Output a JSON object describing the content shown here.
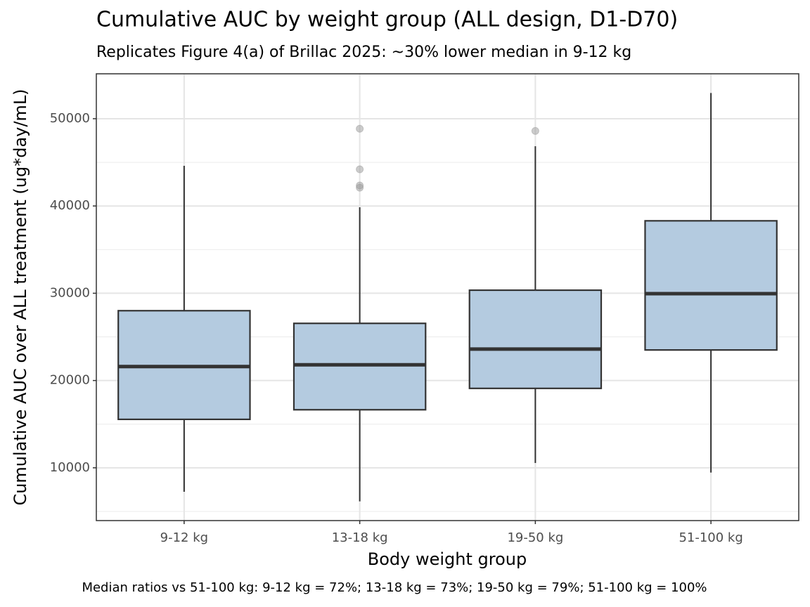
{
  "chart_data": {
    "type": "box",
    "title": "Cumulative AUC by weight group (ALL design, D1-D70)",
    "subtitle": "Replicates Figure 4(a) of Brillac 2025: ~30% lower median in 9-12 kg",
    "x_label": "Body weight group",
    "y_label": "Cumulative AUC over ALL treatment (ug*day/mL)",
    "caption": "Median ratios vs 51-100 kg: 9-12 kg = 72%; 13-18 kg = 73%; 19-50 kg = 79%; 51-100 kg = 100%",
    "categories": [
      "9-12 kg",
      "13-18 kg",
      "19-50 kg",
      "51-100 kg"
    ],
    "boxes": [
      {
        "whisker_low": 7250,
        "q1": 15550,
        "median": 21600,
        "q3": 28000,
        "whisker_high": 44600,
        "outliers": []
      },
      {
        "whisker_low": 6150,
        "q1": 16650,
        "median": 21800,
        "q3": 26550,
        "whisker_high": 39850,
        "outliers": [
          48850,
          44200,
          42350,
          42100
        ]
      },
      {
        "whisker_low": 10550,
        "q1": 19100,
        "median": 23600,
        "q3": 30350,
        "whisker_high": 46850,
        "outliers": [
          48600
        ]
      },
      {
        "whisker_low": 9450,
        "q1": 23500,
        "median": 29950,
        "q3": 38300,
        "whisker_high": 52950,
        "outliers": []
      }
    ],
    "color": "#b4cbe0",
    "ylim": [
      3950,
      55150
    ],
    "yticks": [
      10000,
      20000,
      30000,
      40000,
      50000
    ],
    "minor_yticks": [
      5000,
      15000,
      25000,
      35000,
      45000,
      55000
    ],
    "grid": true
  }
}
